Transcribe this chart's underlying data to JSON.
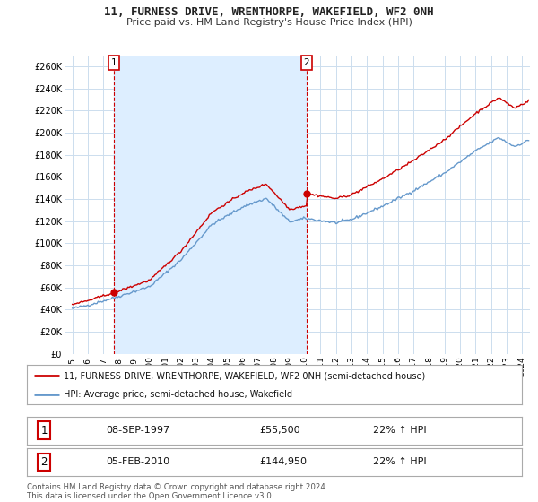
{
  "title": "11, FURNESS DRIVE, WRENTHORPE, WAKEFIELD, WF2 0NH",
  "subtitle": "Price paid vs. HM Land Registry's House Price Index (HPI)",
  "legend_line1": "11, FURNESS DRIVE, WRENTHORPE, WAKEFIELD, WF2 0NH (semi-detached house)",
  "legend_line2": "HPI: Average price, semi-detached house, Wakefield",
  "footer": "Contains HM Land Registry data © Crown copyright and database right 2024.\nThis data is licensed under the Open Government Licence v3.0.",
  "transaction1_date": "08-SEP-1997",
  "transaction1_price": "£55,500",
  "transaction1_hpi": "22% ↑ HPI",
  "transaction2_date": "05-FEB-2010",
  "transaction2_price": "£144,950",
  "transaction2_hpi": "22% ↑ HPI",
  "property_color": "#cc0000",
  "hpi_color": "#6699cc",
  "shade_color": "#ddeeff",
  "marker1_x": 1997.69,
  "marker1_y": 55500,
  "marker2_x": 2010.09,
  "marker2_y": 144950,
  "ylim": [
    0,
    270000
  ],
  "xlim": [
    1994.5,
    2024.5
  ],
  "yticks": [
    0,
    20000,
    40000,
    60000,
    80000,
    100000,
    120000,
    140000,
    160000,
    180000,
    200000,
    220000,
    240000,
    260000
  ],
  "ytick_labels": [
    "£0",
    "£20K",
    "£40K",
    "£60K",
    "£80K",
    "£100K",
    "£120K",
    "£140K",
    "£160K",
    "£180K",
    "£200K",
    "£220K",
    "£240K",
    "£260K"
  ],
  "xticks": [
    1995,
    1996,
    1997,
    1998,
    1999,
    2000,
    2001,
    2002,
    2003,
    2004,
    2005,
    2006,
    2007,
    2008,
    2009,
    2010,
    2011,
    2012,
    2013,
    2014,
    2015,
    2016,
    2017,
    2018,
    2019,
    2020,
    2021,
    2022,
    2023,
    2024
  ],
  "background_color": "#ffffff",
  "grid_color": "#ccddee"
}
